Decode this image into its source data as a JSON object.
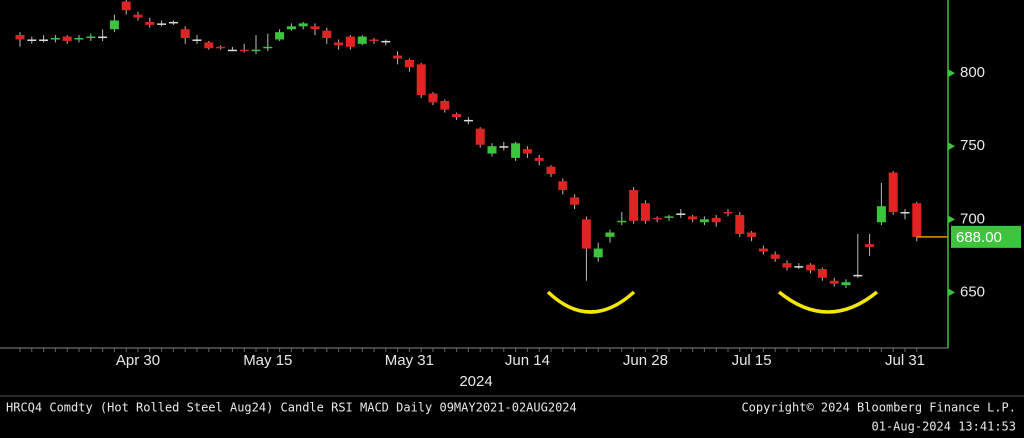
{
  "chart_data": {
    "type": "candlestick",
    "categories": [
      null,
      null,
      null,
      null,
      null,
      null,
      null,
      null,
      null,
      null,
      "Apr 30",
      null,
      null,
      null,
      null,
      null,
      null,
      null,
      null,
      null,
      null,
      "May 15",
      null,
      null,
      null,
      null,
      null,
      null,
      null,
      null,
      null,
      null,
      null,
      "May 31",
      null,
      null,
      null,
      null,
      null,
      null,
      null,
      null,
      null,
      "Jun 14",
      null,
      null,
      null,
      null,
      null,
      null,
      null,
      null,
      null,
      "Jun 28",
      null,
      null,
      null,
      null,
      null,
      null,
      null,
      null,
      "Jul 15",
      null,
      null,
      null,
      null,
      null,
      null,
      null,
      null,
      null,
      null,
      null,
      null,
      "Jul 31",
      null
    ],
    "open": [
      826,
      823,
      823,
      823,
      825,
      823,
      824,
      825,
      830,
      849,
      840,
      835,
      834,
      835,
      830,
      823,
      821,
      818,
      816,
      816,
      815,
      817,
      823,
      830,
      832,
      832,
      829,
      821,
      825,
      820,
      823,
      822,
      812,
      809,
      806,
      786,
      781,
      772,
      768,
      762,
      745,
      750,
      742,
      748,
      742,
      736,
      726,
      715,
      700,
      674,
      688,
      698,
      720,
      711,
      701,
      701,
      704,
      702,
      698,
      701,
      705,
      703,
      691,
      680,
      676,
      670,
      668,
      669,
      666,
      658,
      655,
      662,
      683,
      698,
      732,
      705,
      711
    ],
    "high": [
      828,
      825,
      826,
      826,
      826,
      826,
      827,
      830,
      840,
      850,
      842,
      838,
      836,
      836,
      832,
      826,
      822,
      819,
      818,
      820,
      826,
      827,
      830,
      834,
      835,
      834,
      831,
      823,
      826,
      826,
      824,
      823,
      815,
      810,
      807,
      787,
      782,
      773,
      770,
      763,
      752,
      753,
      753,
      750,
      744,
      737,
      728,
      717,
      702,
      684,
      693,
      705,
      722,
      713,
      702,
      703,
      707,
      703,
      702,
      703,
      707,
      705,
      692,
      682,
      678,
      672,
      670,
      670,
      667,
      660,
      659,
      690,
      690,
      725,
      733,
      707,
      712
    ],
    "low": [
      818,
      820,
      821,
      821,
      820,
      821,
      822,
      822,
      828,
      840,
      836,
      831,
      832,
      833,
      820,
      820,
      816,
      816,
      815,
      814,
      813,
      815,
      822,
      829,
      830,
      826,
      820,
      816,
      816,
      819,
      820,
      819,
      806,
      801,
      783,
      778,
      773,
      768,
      765,
      749,
      743,
      747,
      740,
      742,
      737,
      729,
      717,
      707,
      658,
      671,
      684,
      696,
      697,
      697,
      698,
      699,
      701,
      698,
      696,
      695,
      702,
      688,
      685,
      676,
      671,
      665,
      666,
      663,
      658,
      654,
      653,
      660,
      675,
      696,
      703,
      700,
      685
    ],
    "close": [
      823,
      823,
      823,
      824,
      822,
      824,
      825,
      825,
      836,
      843,
      838,
      833,
      834,
      835,
      824,
      823,
      817,
      817,
      816,
      815,
      816,
      818,
      828,
      832,
      834,
      830,
      824,
      819,
      818,
      825,
      822,
      822,
      810,
      804,
      785,
      780,
      775,
      770,
      768,
      751,
      750,
      750,
      752,
      745,
      740,
      731,
      720,
      710,
      680,
      680,
      691,
      699,
      699,
      699,
      700,
      702,
      704,
      700,
      700,
      698,
      704,
      690,
      688,
      678,
      673,
      667,
      668,
      665,
      660,
      656,
      657,
      662,
      681,
      709,
      705,
      705,
      688
    ],
    "up_color": "#3cc43c",
    "down_color": "#e02424",
    "ylim": [
      612,
      850
    ],
    "yticks": [
      650,
      700,
      750,
      800
    ],
    "x_sublabel": "2024",
    "last_value": 688,
    "last_value_label": "688.00",
    "footer_left": "HRCQ4 Comdty (Hot Rolled Steel  Aug24) Candle RSI MACD  Daily 09MAY2021-02AUG2024",
    "footer_right": "Copyright© 2024 Bloomberg Finance L.P.",
    "timestamp": "01-Aug-2024 13:41:53"
  }
}
